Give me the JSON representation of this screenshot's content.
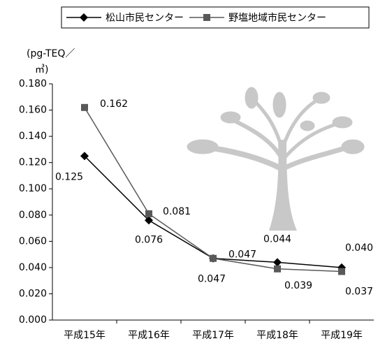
{
  "chart_data": {
    "type": "line",
    "y_axis_label": [
      "(pg-TEQ／",
      "㎥)"
    ],
    "categories": [
      "平成15年",
      "平成16年",
      "平成17年",
      "平成18年",
      "平成19年"
    ],
    "series": [
      {
        "name": "松山市民センター",
        "color": "#000000",
        "marker": "diamond",
        "values": [
          0.125,
          0.076,
          0.047,
          0.044,
          0.04
        ],
        "value_labels": [
          "0.125",
          "0.076",
          "0.047",
          "0.044",
          "0.040"
        ]
      },
      {
        "name": "野塩地域市民センター",
        "color": "#595959",
        "marker": "square",
        "values": [
          0.162,
          0.081,
          0.047,
          0.039,
          0.037
        ],
        "value_labels": [
          "0.162",
          "0.081",
          "0.047",
          "0.039",
          "0.037"
        ]
      }
    ],
    "ylim": [
      0,
      0.18
    ],
    "yticks": [
      {
        "value": 0,
        "label": "0.000"
      },
      {
        "value": 0.02,
        "label": "0.020"
      },
      {
        "value": 0.04,
        "label": "0.040"
      },
      {
        "value": 0.06,
        "label": "0.060"
      },
      {
        "value": 0.08,
        "label": "0.080"
      },
      {
        "value": 0.1,
        "label": "0.100"
      },
      {
        "value": 0.12,
        "label": "0.120"
      },
      {
        "value": 0.14,
        "label": "0.140"
      },
      {
        "value": 0.16,
        "label": "0.160"
      },
      {
        "value": 0.18,
        "label": "0.180"
      }
    ],
    "legend": "top"
  }
}
